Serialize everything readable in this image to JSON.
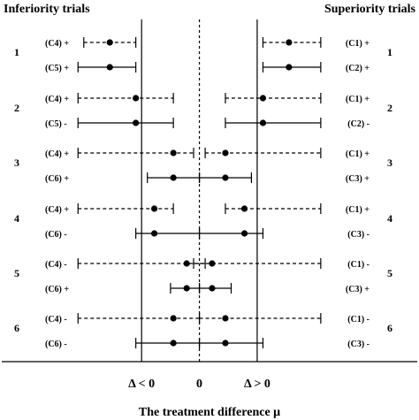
{
  "figure": {
    "left_heading": "Inferiority trials",
    "right_heading": "Superiority trials",
    "xlabel": "The treatment difference μ",
    "axis_marks": [
      {
        "label": "Δ < 0",
        "x": -1
      },
      {
        "label": "0",
        "x": 0
      },
      {
        "label": "Δ > 0",
        "x": 1
      }
    ]
  },
  "chart_data": {
    "type": "forest",
    "xlim": [
      -3.45,
      3.8
    ],
    "reference_lines": [
      {
        "x": -1,
        "style": "solid"
      },
      {
        "x": 0,
        "style": "dashed"
      },
      {
        "x": 1,
        "style": "solid"
      }
    ],
    "left_panel": [
      {
        "scenario": "1",
        "rows": [
          {
            "label": "(C4) +",
            "estimate": -1.55,
            "lower": -2.0,
            "upper": -1.1,
            "line": "dashed"
          },
          {
            "label": "(C5) +",
            "estimate": -1.55,
            "lower": -2.1,
            "upper": -1.1,
            "line": "solid"
          }
        ]
      },
      {
        "scenario": "2",
        "rows": [
          {
            "label": "(C4) +",
            "estimate": -1.1,
            "lower": -2.1,
            "upper": -0.45,
            "line": "dashed"
          },
          {
            "label": "(C5) -",
            "estimate": -1.1,
            "lower": -2.1,
            "upper": -0.45,
            "line": "solid"
          }
        ]
      },
      {
        "scenario": "3",
        "rows": [
          {
            "label": "(C4) +",
            "estimate": -0.45,
            "lower": -2.1,
            "upper": -0.1,
            "line": "dashed"
          },
          {
            "label": "(C6) +",
            "estimate": -0.45,
            "lower": -0.9,
            "upper": 0.0,
            "line": "solid"
          }
        ]
      },
      {
        "scenario": "4",
        "rows": [
          {
            "label": "(C4) +",
            "estimate": -0.78,
            "lower": -2.1,
            "upper": -0.45,
            "line": "dashed"
          },
          {
            "label": "(C6) -",
            "estimate": -0.78,
            "lower": -1.1,
            "upper": 0.0,
            "line": "solid"
          }
        ]
      },
      {
        "scenario": "5",
        "rows": [
          {
            "label": "(C4) -",
            "estimate": -0.22,
            "lower": -2.1,
            "upper": 0.1,
            "line": "dashed"
          },
          {
            "label": "(C6) +",
            "estimate": -0.22,
            "lower": -0.5,
            "upper": 0.0,
            "line": "solid"
          }
        ]
      },
      {
        "scenario": "6",
        "rows": [
          {
            "label": "(C4) -",
            "estimate": -0.45,
            "lower": -2.1,
            "upper": 0.0,
            "line": "dashed"
          },
          {
            "label": "(C6) -",
            "estimate": -0.45,
            "lower": -1.1,
            "upper": 0.0,
            "line": "solid"
          }
        ]
      }
    ],
    "right_panel": [
      {
        "scenario": "1",
        "rows": [
          {
            "label": "(C1) +",
            "estimate": 1.55,
            "lower": 1.1,
            "upper": 2.1,
            "line": "dashed"
          },
          {
            "label": "(C2) +",
            "estimate": 1.55,
            "lower": 1.1,
            "upper": 2.1,
            "line": "solid"
          }
        ]
      },
      {
        "scenario": "2",
        "rows": [
          {
            "label": "(C1) +",
            "estimate": 1.1,
            "lower": 0.45,
            "upper": 2.1,
            "line": "dashed"
          },
          {
            "label": "(C2) -",
            "estimate": 1.1,
            "lower": 0.45,
            "upper": 2.1,
            "line": "solid"
          }
        ]
      },
      {
        "scenario": "3",
        "rows": [
          {
            "label": "(C1) +",
            "estimate": 0.45,
            "lower": 0.1,
            "upper": 2.1,
            "line": "dashed"
          },
          {
            "label": "(C3) +",
            "estimate": 0.45,
            "lower": 0.0,
            "upper": 0.9,
            "line": "solid"
          }
        ]
      },
      {
        "scenario": "4",
        "rows": [
          {
            "label": "(C1) +",
            "estimate": 0.78,
            "lower": 0.45,
            "upper": 2.1,
            "line": "dashed"
          },
          {
            "label": "(C3) -",
            "estimate": 0.78,
            "lower": 0.0,
            "upper": 1.1,
            "line": "solid"
          }
        ]
      },
      {
        "scenario": "5",
        "rows": [
          {
            "label": "(C1) -",
            "estimate": 0.22,
            "lower": -0.1,
            "upper": 2.1,
            "line": "dashed"
          },
          {
            "label": "(C3) +",
            "estimate": 0.22,
            "lower": 0.0,
            "upper": 0.55,
            "line": "solid"
          }
        ]
      },
      {
        "scenario": "6",
        "rows": [
          {
            "label": "(C1) -",
            "estimate": 0.45,
            "lower": 0.0,
            "upper": 2.1,
            "line": "dashed"
          },
          {
            "label": "(C3) -",
            "estimate": 0.45,
            "lower": 0.0,
            "upper": 1.1,
            "line": "solid"
          }
        ]
      }
    ]
  }
}
